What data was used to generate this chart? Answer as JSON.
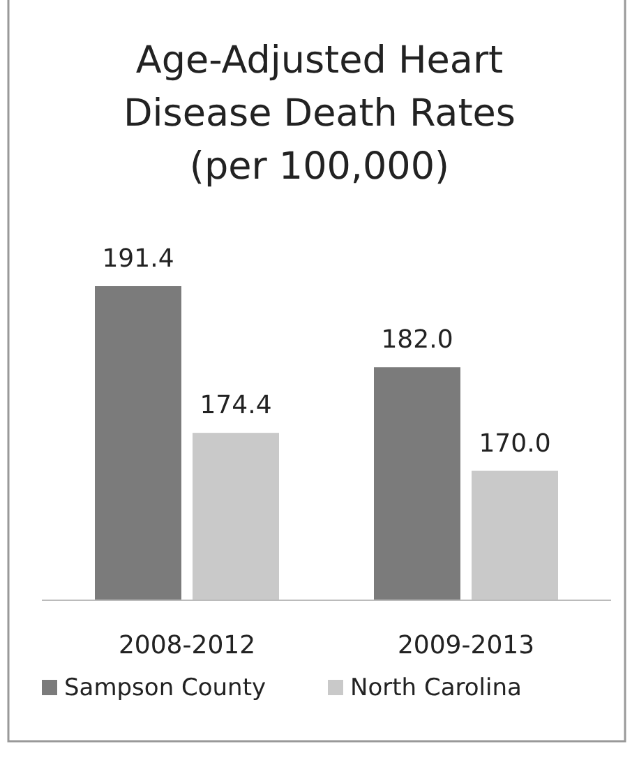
{
  "chart_data": {
    "type": "bar",
    "title": "Age-Adjusted Heart Disease Death Rates (per 100,000)",
    "categories": [
      "2008-2012",
      "2009-2013"
    ],
    "series": [
      {
        "name": "Sampson County",
        "color": "#7b7b7b",
        "values": [
          191.4,
          182.0
        ],
        "value_labels": [
          "191.4",
          "182.0"
        ]
      },
      {
        "name": "North Carolina",
        "color": "#c9c9c9",
        "values": [
          174.4,
          170.0
        ],
        "value_labels": [
          "174.4",
          "170.0"
        ]
      }
    ],
    "ylim": [
      155,
      191.4
    ],
    "tick_labels": "x",
    "grid": false,
    "legend": "bottom"
  }
}
